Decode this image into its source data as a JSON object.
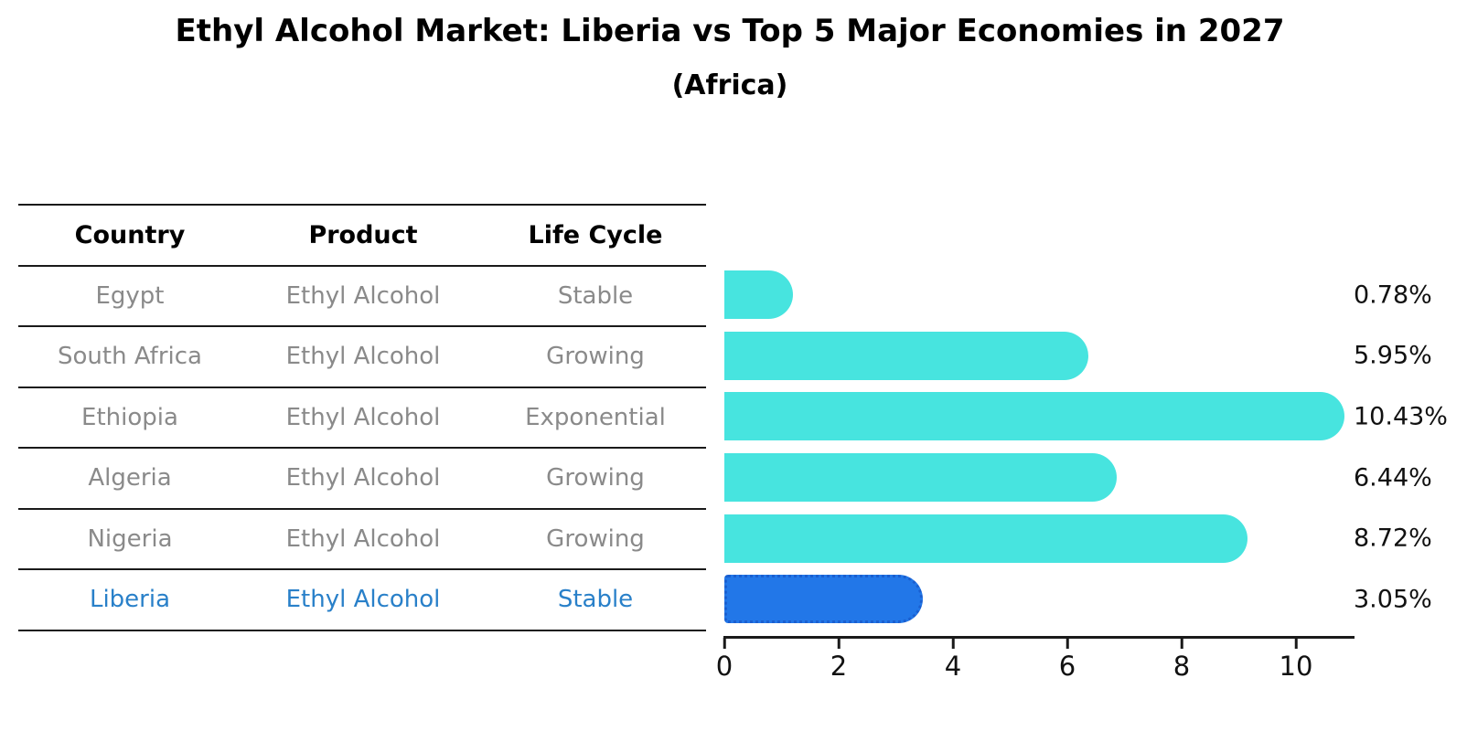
{
  "chart": {
    "title": "Ethyl Alcohol Market: Liberia vs Top 5 Major Economies in 2027",
    "subtitle": "(Africa)"
  },
  "table": {
    "headers": [
      "Country",
      "Product",
      "Life Cycle"
    ]
  },
  "chart_data": {
    "type": "bar",
    "orientation": "horizontal",
    "title": "Ethyl Alcohol Market: Liberia vs Top 5 Major Economies in 2027",
    "subtitle": "(Africa)",
    "categories": [
      "Egypt",
      "South Africa",
      "Ethiopia",
      "Algeria",
      "Nigeria",
      "Liberia"
    ],
    "values": [
      0.78,
      5.95,
      10.43,
      6.44,
      8.72,
      3.05
    ],
    "rows": [
      {
        "country": "Egypt",
        "product": "Ethyl Alcohol",
        "life_cycle": "Stable",
        "value": 0.78,
        "value_label": "0.78%",
        "highlighted": false
      },
      {
        "country": "South Africa",
        "product": "Ethyl Alcohol",
        "life_cycle": "Growing",
        "value": 5.95,
        "value_label": "5.95%",
        "highlighted": false
      },
      {
        "country": "Ethiopia",
        "product": "Ethyl Alcohol",
        "life_cycle": "Exponential",
        "value": 10.43,
        "value_label": "10.43%",
        "highlighted": false
      },
      {
        "country": "Algeria",
        "product": "Ethyl Alcohol",
        "life_cycle": "Growing",
        "value": 6.44,
        "value_label": "6.44%",
        "highlighted": false
      },
      {
        "country": "Nigeria",
        "product": "Ethyl Alcohol",
        "life_cycle": "Growing",
        "value": 8.72,
        "value_label": "8.72%",
        "highlighted": false
      },
      {
        "country": "Liberia",
        "product": "Ethyl Alcohol",
        "life_cycle": "Stable",
        "value": 3.05,
        "value_label": "3.05%",
        "highlighted": true
      }
    ],
    "xticks": [
      0,
      2,
      4,
      6,
      8,
      10
    ],
    "xlim": [
      0,
      11
    ],
    "grid": false,
    "legend": null,
    "bar_color": "#47e4df",
    "highlight_bar_color": "#2277e8",
    "highlight_border_color": "#1a5fd0",
    "highlight_text_color": "#2980c9",
    "axis_color": "#1a1a1a",
    "table_text_color": "#8a8a8a"
  }
}
